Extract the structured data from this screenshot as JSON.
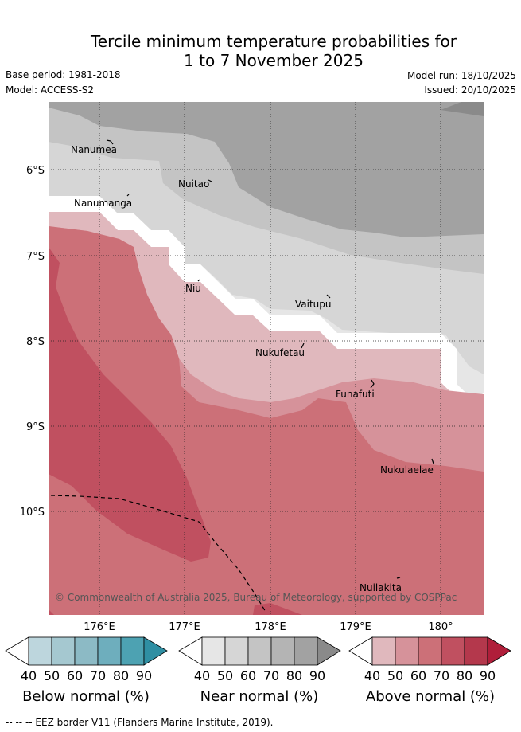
{
  "header": {
    "title_line1": "Tercile minimum temperature probabilities for",
    "title_line2": "1 to 7 November 2025",
    "base_period": "Base period: 1981-2018",
    "model": "Model: ACCESS-S2",
    "model_run": "Model run: 18/10/2025",
    "issued": "Issued: 20/10/2025"
  },
  "map": {
    "lat_labels": [
      "6°S",
      "7°S",
      "8°S",
      "9°S",
      "10°S"
    ],
    "lon_labels": [
      "176°E",
      "177°E",
      "178°E",
      "179°E",
      "180°"
    ],
    "places": [
      "Nanumea",
      "Nuitao",
      "Nanumanga",
      "Niu",
      "Vaitupu",
      "Nukufetau",
      "Funafuti",
      "Nukulaelae",
      "Nuilakita"
    ],
    "copyright": "© Commonwealth of Australia 2025, Bureau of Meteorology, supported by COSPPac"
  },
  "legends": {
    "ticks": [
      "40",
      "50",
      "60",
      "70",
      "80",
      "90"
    ],
    "below": {
      "title": "Below normal (%)",
      "colors": [
        "#ffffff",
        "#bdd6dd",
        "#a5c8d0",
        "#8cbac5",
        "#6eaebd",
        "#4da2b2",
        "#2f8fa3"
      ]
    },
    "near": {
      "title": "Near normal (%)",
      "colors": [
        "#ffffff",
        "#e6e6e6",
        "#d6d6d6",
        "#c4c4c4",
        "#b4b4b4",
        "#a2a2a2",
        "#8a8a8a"
      ]
    },
    "above": {
      "title": "Above normal (%)",
      "colors": [
        "#ffffff",
        "#e0b8bd",
        "#d6929a",
        "#cc7078",
        "#c05060",
        "#b4384c",
        "#b01e3a"
      ]
    }
  },
  "footer": {
    "eez_note": "--  --  -- EEZ border V11 (Flanders Marine Institute, 2019)."
  }
}
